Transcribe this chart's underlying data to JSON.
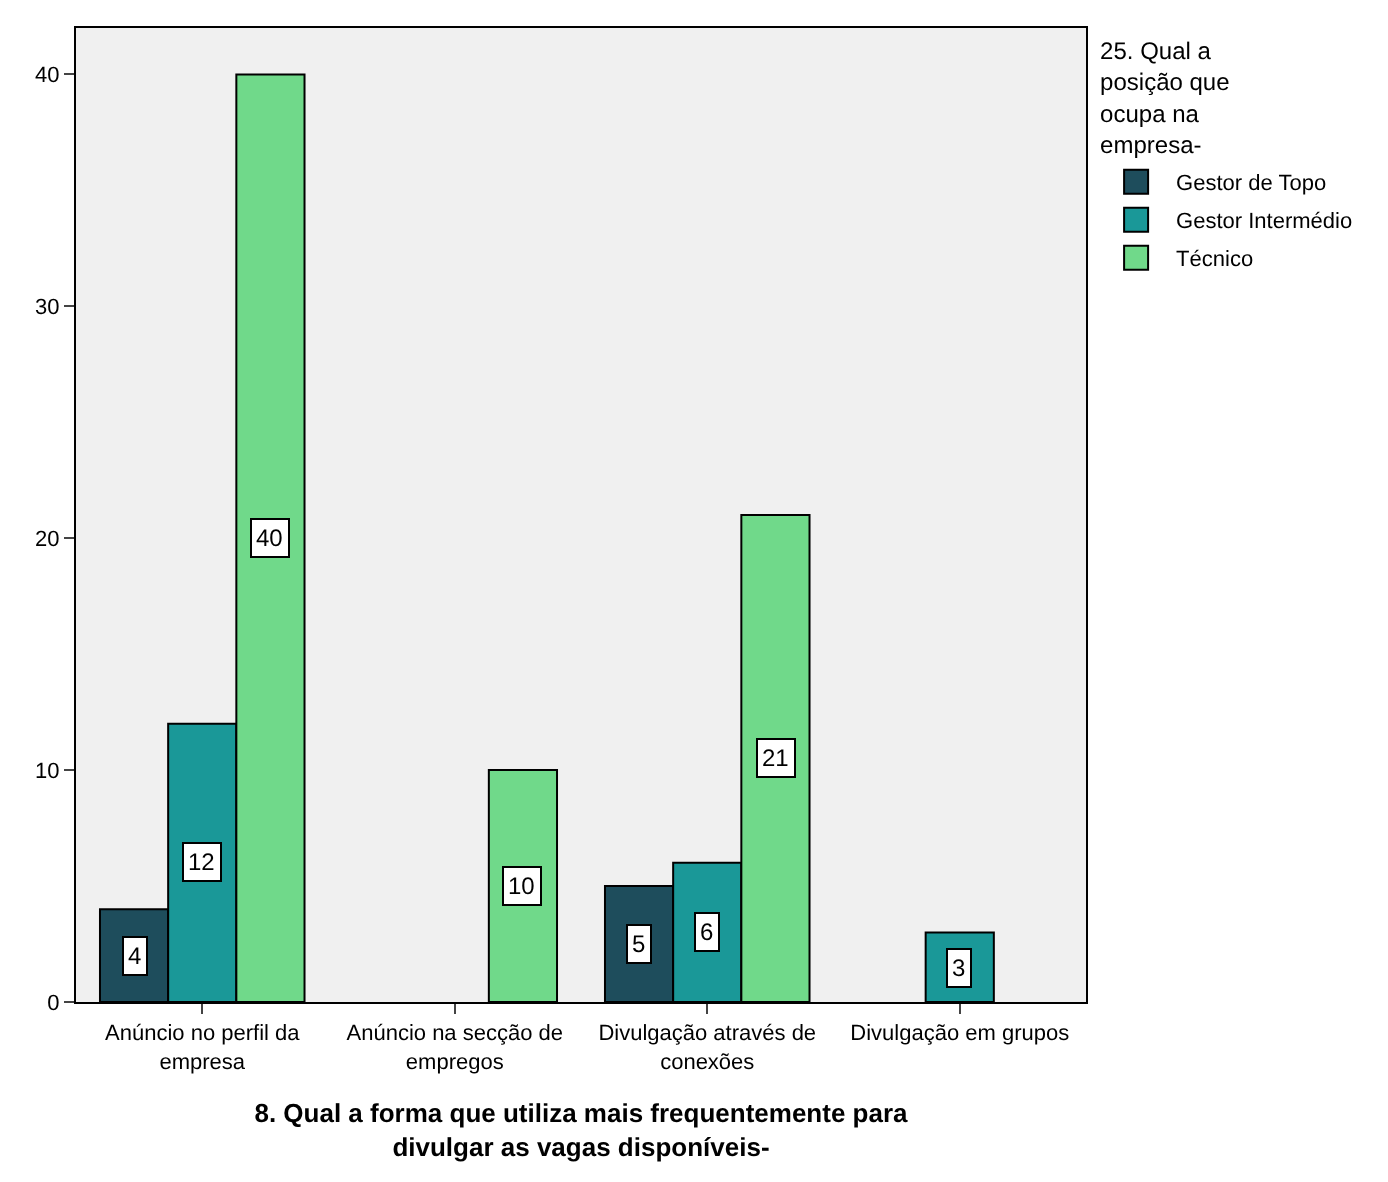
{
  "chart_data": {
    "type": "bar",
    "xlabel": "8. Qual a forma que utiliza mais frequentemente para divulgar as vagas disponíveis-",
    "legend_title": "25. Qual a posição que ocupa na empresa-",
    "categories": [
      "Anúncio no perfil da empresa",
      "Anúncio na secção de empregos",
      "Divulgação através de conexões",
      "Divulgação em grupos"
    ],
    "series": [
      {
        "name": "Gestor de Topo",
        "color": "#1e4d5c",
        "values": [
          4,
          null,
          5,
          null
        ]
      },
      {
        "name": "Gestor Intermédio",
        "color": "#1a9898",
        "values": [
          12,
          null,
          6,
          3
        ]
      },
      {
        "name": "Técnico",
        "color": "#70d98a",
        "values": [
          40,
          10,
          21,
          null
        ]
      }
    ],
    "ylim": [
      0,
      42
    ],
    "yticks": [
      0,
      10,
      20,
      30,
      40
    ],
    "grid": false,
    "legend": "top right",
    "data_labels": true
  }
}
